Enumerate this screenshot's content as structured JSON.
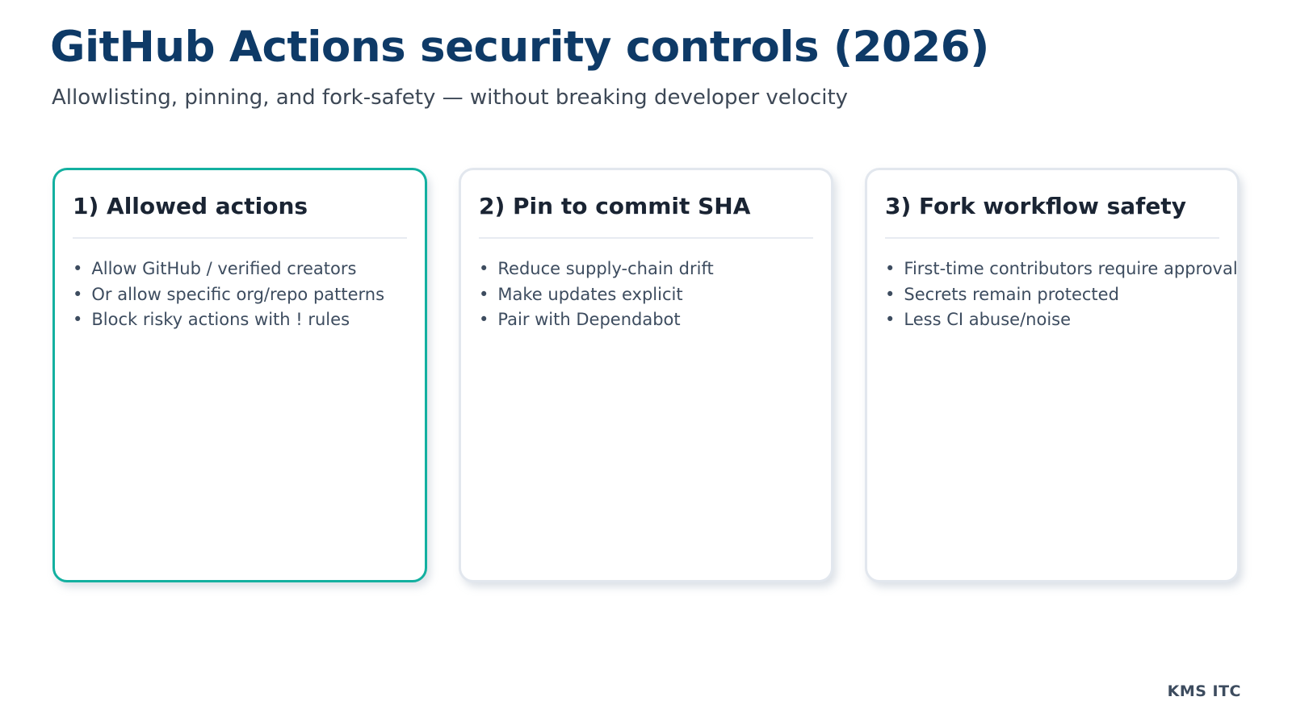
{
  "page": {
    "title": "GitHub Actions security controls (2026)",
    "subtitle": "Allowlisting, pinning, and fork-safety — without breaking developer velocity",
    "footer": "KMS ITC"
  },
  "colors": {
    "title_color": "#0e3a67",
    "subtitle_color": "#3d4856",
    "card_heading": "#1a2433",
    "bullet_text": "#3d4c5f",
    "accent_teal": "#13b0a0",
    "card_border": "#e2e7ee",
    "divider": "#e7ebf1",
    "background": "#ffffff"
  },
  "cards": [
    {
      "title": "1) Allowed actions",
      "highlighted": true,
      "bullets": [
        "Allow GitHub / verified creators",
        "Or allow specific org/repo patterns",
        "Block risky actions with ! rules"
      ]
    },
    {
      "title": "2) Pin to commit SHA",
      "highlighted": false,
      "bullets": [
        "Reduce supply-chain drift",
        "Make updates explicit",
        "Pair with Dependabot"
      ]
    },
    {
      "title": "3) Fork workflow safety",
      "highlighted": false,
      "bullets": [
        "First-time contributors require approval",
        "Secrets remain protected",
        "Less CI abuse/noise"
      ]
    }
  ]
}
